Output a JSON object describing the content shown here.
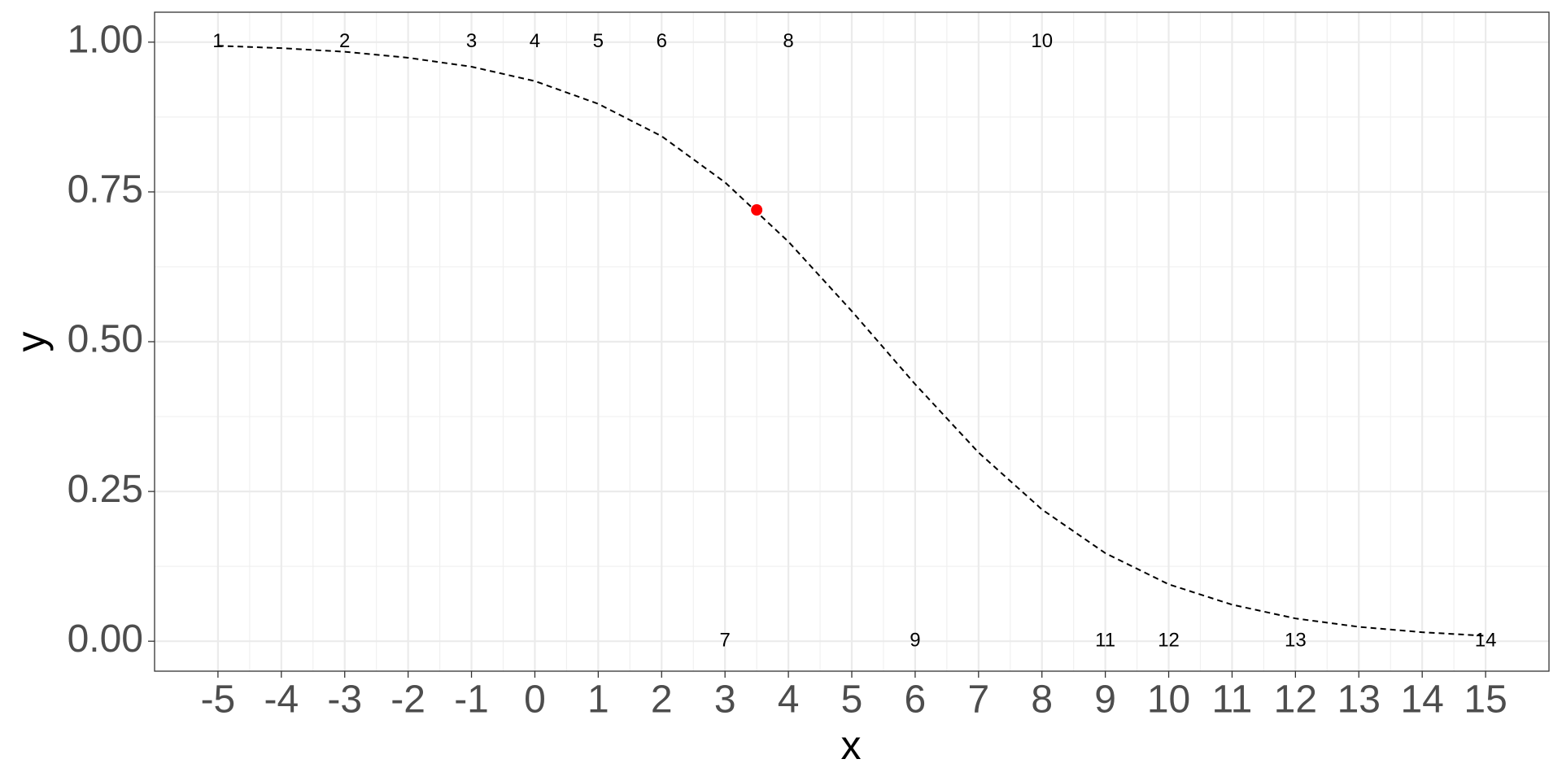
{
  "chart_data": {
    "type": "line",
    "x_label": "x",
    "y_label": "y",
    "xlim": [
      -6,
      16
    ],
    "ylim": [
      -0.05,
      1.05
    ],
    "xticks": [
      -5,
      -4,
      -3,
      -2,
      -1,
      0,
      1,
      2,
      3,
      4,
      5,
      6,
      7,
      8,
      9,
      10,
      11,
      12,
      13,
      14,
      15
    ],
    "yticks": [
      {
        "value": 0,
        "label": "0.00"
      },
      {
        "value": 0.25,
        "label": "0.25"
      },
      {
        "value": 0.5,
        "label": "0.50"
      },
      {
        "value": 0.75,
        "label": "0.75"
      },
      {
        "value": 1,
        "label": "1.00"
      }
    ],
    "grid": true,
    "minor_grid": true,
    "series": [
      {
        "color": "#000000",
        "dash": true,
        "x": [
          -5,
          -4,
          -3,
          -2,
          -1,
          0,
          1,
          2,
          3,
          4,
          5,
          6,
          7,
          8,
          9,
          10,
          11,
          12,
          13,
          14,
          15
        ],
        "values": [
          0.994,
          0.99,
          0.984,
          0.974,
          0.959,
          0.935,
          0.897,
          0.843,
          0.766,
          0.667,
          0.551,
          0.429,
          0.315,
          0.22,
          0.147,
          0.095,
          0.061,
          0.038,
          0.024,
          0.015,
          0.009
        ]
      }
    ],
    "highlight": {
      "x": 3.5,
      "y": 0.72,
      "color": "#ff0000"
    },
    "points": {
      "x": [
        -5,
        -3,
        -1,
        0,
        1,
        2,
        3,
        4,
        6,
        8,
        9,
        10,
        12,
        15
      ],
      "y": [
        1,
        1,
        1,
        1,
        1,
        1,
        0,
        1,
        0,
        1,
        0,
        0,
        0,
        0
      ],
      "labels": [
        "1",
        "2",
        "3",
        "4",
        "5",
        "6",
        "7",
        "8",
        "9",
        "10",
        "11",
        "12",
        "13",
        "14"
      ]
    }
  }
}
